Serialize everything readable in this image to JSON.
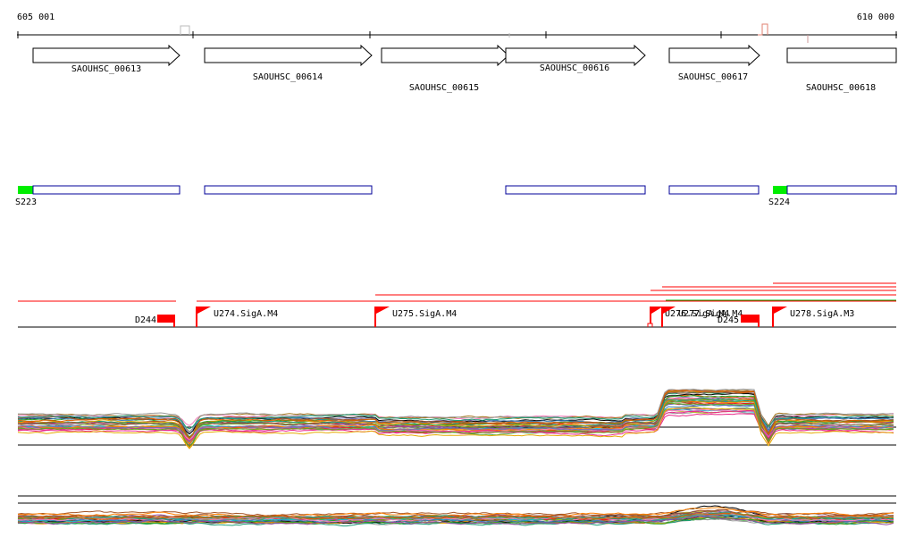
{
  "coordinates": {
    "start": "605 001",
    "end": "610 000"
  },
  "genes": [
    {
      "id": "gene-00613",
      "label": "SAOUHSC_00613",
      "direction": "forward"
    },
    {
      "id": "gene-00614",
      "label": "SAOUHSC_00614",
      "direction": "forward"
    },
    {
      "id": "gene-00615",
      "label": "SAOUHSC_00615",
      "direction": "forward"
    },
    {
      "id": "gene-00616",
      "label": "SAOUHSC_00616",
      "direction": "forward"
    },
    {
      "id": "gene-00617",
      "label": "SAOUHSC_00617",
      "direction": "forward"
    },
    {
      "id": "gene-00618",
      "label": "SAOUHSC_00618",
      "direction": "forward"
    }
  ],
  "segments": [
    {
      "label": "S223",
      "color": "#00ee00"
    },
    {
      "label": "S224",
      "color": "#00ee00"
    }
  ],
  "features": {
    "downshifts": [
      {
        "label": "D244",
        "color": "#ff0000"
      },
      {
        "label": "D245",
        "color": "#ff0000"
      }
    ],
    "upshifts": [
      {
        "label": "U274.SigA.M4",
        "color": "#ff0000"
      },
      {
        "label": "U275.SigA.M4",
        "color": "#ff0000"
      },
      {
        "label": "U276.SigA.M4",
        "color": "#ff0000"
      },
      {
        "label": "U277.SigA.M4",
        "color": "#ff0000"
      },
      {
        "label": "U278.SigA.M3",
        "color": "#ff0000"
      }
    ]
  },
  "colors": {
    "gene_outline": "#000000",
    "segment_outline": "#000099",
    "feature_red": "#ff0000",
    "feature_green": "#00aa00"
  }
}
